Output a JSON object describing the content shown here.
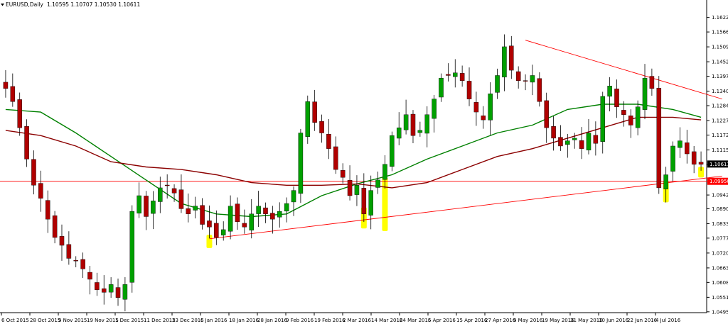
{
  "header": {
    "symbol_label": "EURUSD,Daily",
    "ohlc_label": "1.10595 1.10707 1.10530 1.10611",
    "menu_icon": "triangle-down-icon"
  },
  "colors": {
    "bull_body": "#00a000",
    "bear_body": "#b00000",
    "wick": "#000000",
    "ma_fast": "#008000",
    "ma_slow": "#8b0000",
    "trendline": "#ff0000",
    "highlight": "#ffff00",
    "price_badge_bg": "#000000",
    "support_badge_bg": "#ff0000"
  },
  "chart_data": {
    "type": "candlestick",
    "title": "EURUSD,Daily",
    "ohlc_readout": "1.10595 1.10707 1.10530 1.10611",
    "ylim": [
      1.0495,
      1.1678
    ],
    "y_ticks": [
      "1.16220",
      "1.15665",
      "1.15095",
      "1.14525",
      "1.13970",
      "1.13400",
      "1.12845",
      "1.12275",
      "1.11720",
      "1.11150",
      "1.10611",
      "1.10595",
      "1.09950",
      "1.09425",
      "1.08900",
      "1.08330",
      "1.07775",
      "1.07205",
      "1.06635",
      "1.06080",
      "1.05510",
      "1.04955"
    ],
    "x_ticks": [
      "6 Oct 2015",
      "28 Oct 2015",
      "9 Nov 2015",
      "19 Nov 2015",
      "1 Dec 2015",
      "11 Dec 2015",
      "23 Dec 2015",
      "6 Jan 2016",
      "18 Jan 2016",
      "28 Jan 2016",
      "9 Feb 2016",
      "19 Feb 2016",
      "2 Mar 2016",
      "14 Mar 2016",
      "24 Mar 2016",
      "5 Apr 2016",
      "15 Apr 2016",
      "27 Apr 2016",
      "9 May 2016",
      "19 May 2016",
      "31 May 2016",
      "10 Jun 2016",
      "22 Jun 2016",
      "4 Jul 2016"
    ],
    "current_price": "1.10611",
    "support_level": "1.09950",
    "anchor_closes": [
      1.135,
      1.13,
      1.12,
      1.108,
      1.098,
      1.093,
      1.085,
      1.078,
      1.075,
      1.07,
      1.069,
      1.066,
      1.062,
      1.058,
      1.057,
      1.06,
      1.055,
      1.06,
      1.088,
      1.094,
      1.086,
      1.092,
      1.097,
      1.098,
      1.095,
      1.089,
      1.087,
      1.09,
      1.083,
      1.082,
      1.078,
      1.081,
      1.09,
      1.084,
      1.082,
      1.087,
      1.09,
      1.087,
      1.085,
      1.088,
      1.091,
      1.096,
      1.118,
      1.13,
      1.122,
      1.118,
      1.112,
      1.104,
      1.101,
      1.094,
      1.098,
      1.087,
      1.096,
      1.1,
      1.106,
      1.117,
      1.12,
      1.125,
      1.117,
      1.119,
      1.125,
      1.131,
      1.139,
      1.14,
      1.141,
      1.138,
      1.131,
      1.126,
      1.123,
      1.133,
      1.14,
      1.151,
      1.142,
      1.138,
      1.138,
      1.14,
      1.13,
      1.12,
      1.116,
      1.113,
      1.115,
      1.116,
      1.112,
      1.118,
      1.114,
      1.132,
      1.136,
      1.128,
      1.125,
      1.121,
      1.128,
      1.139,
      1.135,
      1.097,
      1.102,
      1.113,
      1.115,
      1.11,
      1.106,
      1.106
    ],
    "series": [
      {
        "name": "",
        "kind": "ma",
        "color": "#008000",
        "x": [
          0,
          5,
          10,
          15,
          20,
          25,
          30,
          35,
          40,
          45,
          50,
          55,
          60,
          65,
          70,
          75,
          80,
          85,
          90,
          95,
          99
        ],
        "values": [
          1.127,
          1.126,
          1.118,
          1.109,
          1.1,
          1.091,
          1.087,
          1.086,
          1.087,
          1.094,
          1.0985,
          1.102,
          1.108,
          1.113,
          1.118,
          1.121,
          1.127,
          1.129,
          1.129,
          1.127,
          1.124
        ]
      },
      {
        "name": "",
        "kind": "ma",
        "color": "#8b0000",
        "x": [
          0,
          5,
          10,
          15,
          20,
          25,
          30,
          35,
          40,
          45,
          50,
          55,
          60,
          65,
          70,
          75,
          80,
          85,
          90,
          95,
          99
        ],
        "values": [
          1.119,
          1.117,
          1.113,
          1.107,
          1.105,
          1.104,
          1.102,
          1.099,
          1.098,
          1.098,
          1.0985,
          1.097,
          1.099,
          1.104,
          1.109,
          1.112,
          1.116,
          1.12,
          1.124,
          1.124,
          1.123
        ]
      }
    ],
    "trendlines": [
      {
        "from": [
          29,
          1.0775
        ],
        "to": [
          102,
          1.1015
        ]
      },
      {
        "from": [
          74,
          1.1535
        ],
        "to": [
          102,
          1.131
        ]
      },
      {
        "from": [
          -2,
          1.0995
        ],
        "to": [
          102,
          1.0995
        ]
      }
    ],
    "highlights": [
      {
        "x": 29,
        "low": 1.0745,
        "high": 1.0785
      },
      {
        "x": 51,
        "low": 1.082,
        "high": 1.089
      },
      {
        "x": 54,
        "low": 1.081,
        "high": 1.1005
      },
      {
        "x": 94,
        "low": 1.092,
        "high": 1.099
      },
      {
        "x": 99,
        "low": 1.1015,
        "high": 1.1045
      }
    ],
    "grid": false,
    "legend": "none"
  }
}
